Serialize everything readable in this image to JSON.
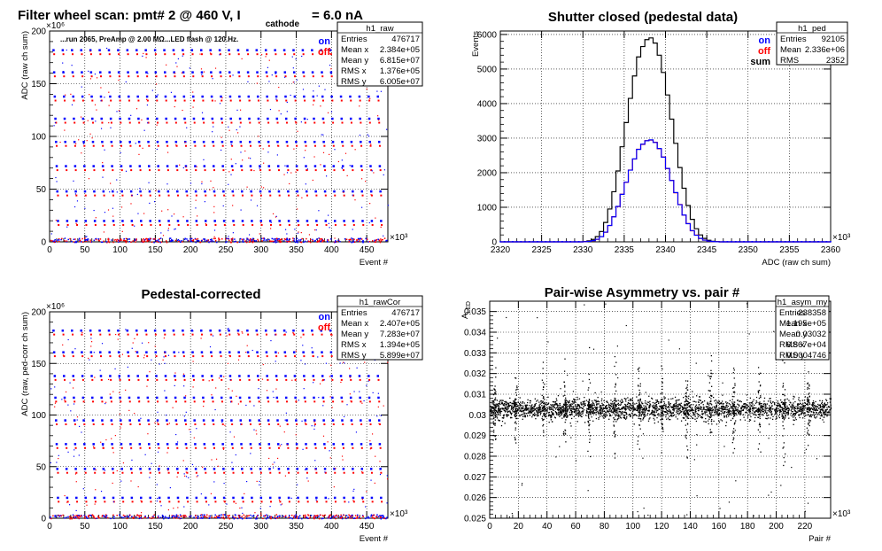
{
  "chart_data": [
    {
      "id": "raw",
      "type": "scatter",
      "title": "Filter wheel scan: pmt#   2 @   460 V, I",
      "title_sub": "cathode",
      "title_tail": "= 6.0 nA",
      "note": "...run 2065, PreAmp @ 2.00 MΩ...LED flash @  120.Hz.",
      "xlabel": "Event #",
      "ylabel": "ADC (raw ch sum)",
      "x_exp": "×10³",
      "y_exp": "×10⁶",
      "xlim": [
        0,
        480
      ],
      "ylim": [
        0,
        200
      ],
      "xticks": [
        0,
        50,
        100,
        150,
        200,
        250,
        300,
        350,
        400,
        450
      ],
      "yticks": [
        0,
        50,
        100,
        150,
        200
      ],
      "grid": true,
      "legend": [
        {
          "name": "on",
          "color": "#0000ff"
        },
        {
          "name": "off",
          "color": "#ff0000"
        }
      ],
      "levels_on": [
        182,
        161,
        138,
        117,
        95,
        72,
        48,
        20
      ],
      "levels_off": [
        178,
        157,
        134,
        113,
        91,
        68,
        44,
        16
      ],
      "stats": {
        "name": "h1_raw",
        "rows": [
          [
            "Entries",
            "476717"
          ],
          [
            "Mean x",
            "2.384e+05"
          ],
          [
            "Mean y",
            "6.815e+07"
          ],
          [
            "RMS x",
            "1.376e+05"
          ],
          [
            "RMS y",
            "6.005e+07"
          ]
        ]
      }
    },
    {
      "id": "ped",
      "type": "line",
      "title": "Shutter closed (pedestal data)",
      "xlabel": "ADC (raw ch sum)",
      "ylabel": "Events",
      "x_exp": "×10³",
      "xlim": [
        2320,
        2360
      ],
      "ylim": [
        0,
        6100
      ],
      "xticks": [
        2320,
        2325,
        2330,
        2335,
        2340,
        2345,
        2350,
        2355,
        2360
      ],
      "yticks": [
        0,
        1000,
        2000,
        3000,
        4000,
        5000,
        6000
      ],
      "grid": true,
      "legend": [
        {
          "name": "on",
          "color": "#0000ff"
        },
        {
          "name": "off",
          "color": "#ff0000"
        },
        {
          "name": "sum",
          "color": "#000000"
        }
      ],
      "bin_width": 0.5,
      "bin_start": 2330,
      "sum_counts": [
        10,
        30,
        70,
        150,
        300,
        560,
        950,
        1450,
        2050,
        2750,
        3450,
        4150,
        4800,
        5350,
        5650,
        5850,
        5900,
        5750,
        5400,
        4900,
        4250,
        3550,
        2850,
        2150,
        1550,
        1050,
        650,
        380,
        200,
        100,
        45,
        18,
        6
      ],
      "on_counts": [
        5,
        15,
        35,
        75,
        150,
        280,
        475,
        725,
        1025,
        1375,
        1725,
        2075,
        2400,
        2675,
        2825,
        2925,
        2950,
        2875,
        2700,
        2450,
        2125,
        1775,
        1425,
        1075,
        775,
        525,
        325,
        190,
        100,
        50,
        22,
        9,
        3
      ],
      "off_counts": [
        5,
        14,
        36,
        74,
        152,
        278,
        472,
        728,
        1022,
        1378,
        1722,
        2078,
        2395,
        2680,
        2820,
        2930,
        2945,
        2880,
        2695,
        2455,
        2120,
        1780,
        1420,
        1080,
        770,
        530,
        320,
        195,
        98,
        52,
        21,
        10,
        3
      ],
      "stats": {
        "name": "h1_ped",
        "rows": [
          [
            "Entries",
            "92105"
          ],
          [
            "Mean",
            "2.336e+06"
          ],
          [
            "RMS",
            "2352"
          ]
        ]
      }
    },
    {
      "id": "rawCor",
      "type": "scatter",
      "title": "Pedestal-corrected",
      "xlabel": "Event #",
      "ylabel": "ADC (raw, ped-corr ch sum)",
      "x_exp": "×10³",
      "y_exp": "×10⁶",
      "xlim": [
        0,
        480
      ],
      "ylim": [
        0,
        200
      ],
      "xticks": [
        0,
        50,
        100,
        150,
        200,
        250,
        300,
        350,
        400,
        450
      ],
      "yticks": [
        0,
        50,
        100,
        150,
        200
      ],
      "grid": true,
      "legend": [
        {
          "name": "on",
          "color": "#0000ff"
        },
        {
          "name": "off",
          "color": "#ff0000"
        }
      ],
      "levels_on": [
        182,
        161,
        138,
        117,
        95,
        72,
        48,
        20
      ],
      "levels_off": [
        178,
        157,
        134,
        113,
        91,
        68,
        44,
        16
      ],
      "stats": {
        "name": "h1_rawCor",
        "rows": [
          [
            "Entries",
            "476717"
          ],
          [
            "Mean x",
            "2.407e+05"
          ],
          [
            "Mean y",
            "7.283e+07"
          ],
          [
            "RMS x",
            "1.394e+05"
          ],
          [
            "RMS y",
            "5.899e+07"
          ]
        ]
      }
    },
    {
      "id": "asym",
      "type": "scatter",
      "title": "Pair-wise Asymmetry vs. pair #",
      "xlabel": "Pair #",
      "ylabel": "A",
      "ylabel_sub": "LED",
      "x_exp": "×10³",
      "xlim": [
        0,
        238
      ],
      "ylim": [
        0.025,
        0.0355
      ],
      "xticks": [
        0,
        20,
        40,
        60,
        80,
        100,
        120,
        140,
        160,
        180,
        200,
        220
      ],
      "yticks": [
        0.025,
        0.026,
        0.027,
        0.028,
        0.029,
        0.03,
        0.031,
        0.032,
        0.033,
        0.034,
        0.035
      ],
      "grid": true,
      "band_center": 0.0303,
      "spike_positions": [
        3,
        18,
        37,
        52,
        69,
        87,
        104,
        120,
        137,
        154,
        170,
        188,
        205,
        222
      ],
      "stats": {
        "name": "h1_asym_my",
        "rows": [
          [
            "Entries",
            "238358"
          ],
          [
            "Mean x",
            "1.195e+05"
          ],
          [
            "Mean y",
            "0.03032"
          ],
          [
            "RMS x",
            "6.867e+04"
          ],
          [
            "RMS y",
            "0.0004746"
          ]
        ]
      }
    }
  ]
}
